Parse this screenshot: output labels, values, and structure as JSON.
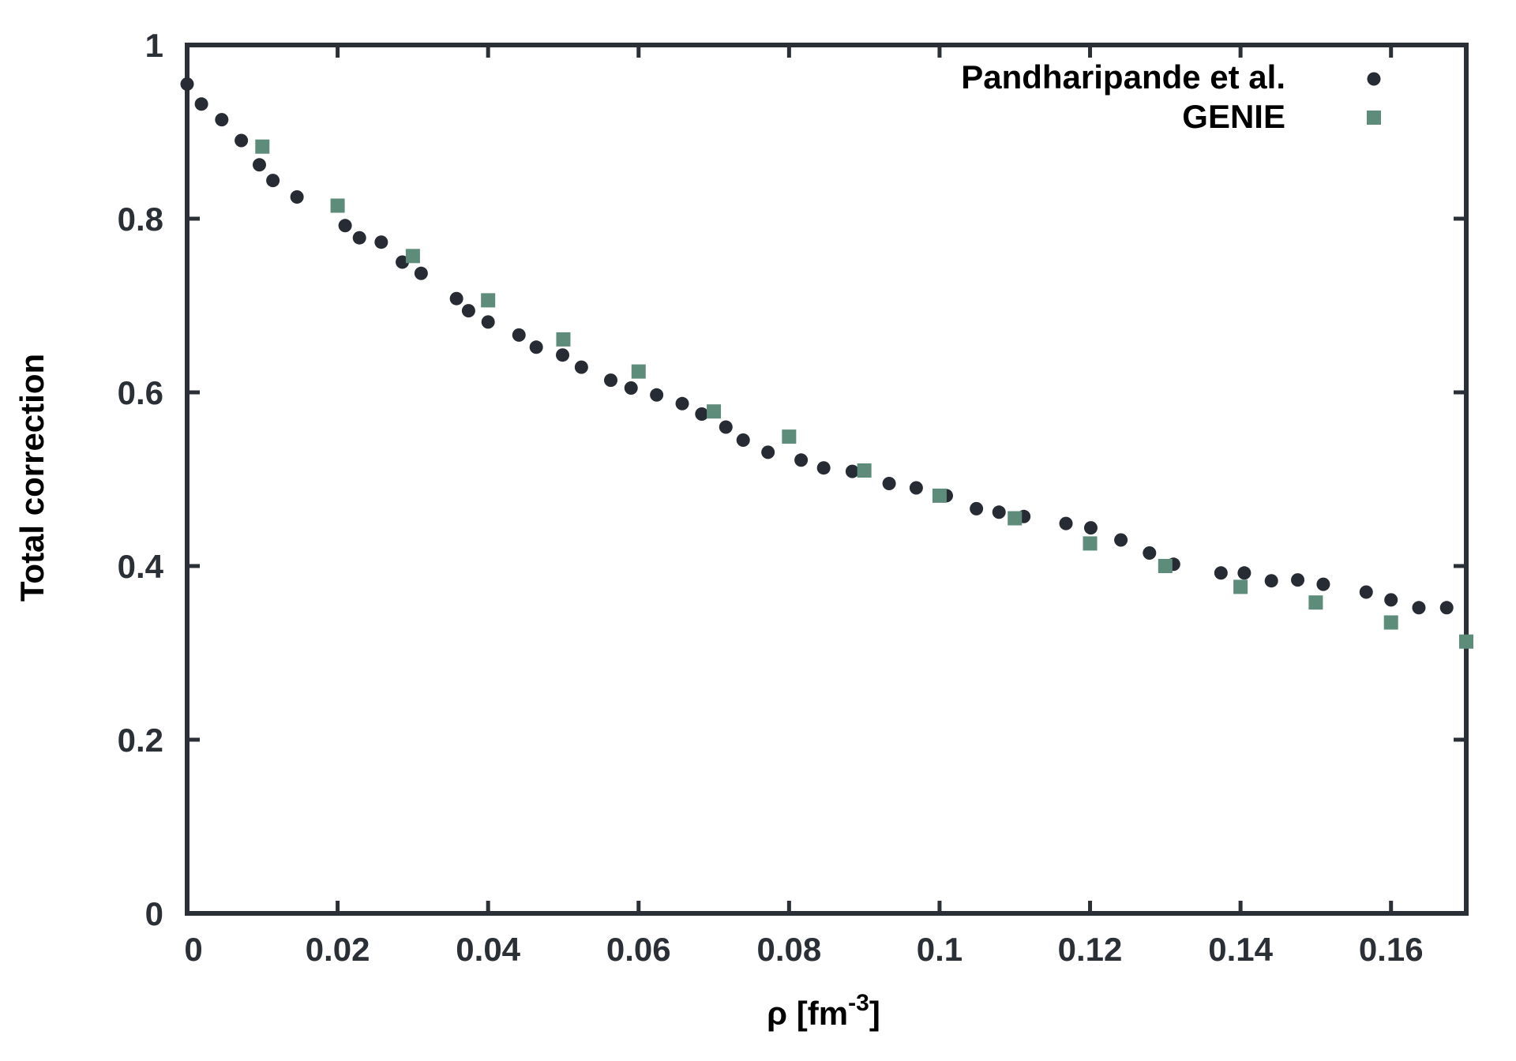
{
  "chart_data": {
    "type": "scatter",
    "title": "",
    "xlabel": "ρ [fm",
    "xlabel_exponent": "-3",
    "xlabel_suffix": "]",
    "ylabel": "Total correction",
    "xlim": [
      0,
      0.17
    ],
    "ylim": [
      0,
      1
    ],
    "x_ticks": [
      0,
      0.02,
      0.04,
      0.06,
      0.08,
      0.1,
      0.12,
      0.14,
      0.16
    ],
    "x_tick_labels": [
      "0",
      "0.02",
      "0.04",
      "0.06",
      "0.08",
      "0.1",
      "0.12",
      "0.14",
      "0.16"
    ],
    "y_ticks": [
      0,
      0.2,
      0.4,
      0.6,
      0.8,
      1
    ],
    "y_tick_labels": [
      "0",
      "0.2",
      "0.4",
      "0.6",
      "0.8",
      "1"
    ],
    "grid": false,
    "legend_position": "top-right",
    "colors": {
      "axis": "#2b2f36",
      "text": "#000000"
    },
    "series": [
      {
        "name": "Pandharipande et al.",
        "marker": "circle",
        "color": "#272b33",
        "x": [
          0.0,
          0.0019,
          0.0046,
          0.0072,
          0.0096,
          0.0114,
          0.0146,
          0.021,
          0.0229,
          0.0258,
          0.0286,
          0.0311,
          0.0358,
          0.0374,
          0.04,
          0.0441,
          0.0464,
          0.0499,
          0.0524,
          0.0563,
          0.059,
          0.0624,
          0.0658,
          0.0684,
          0.0716,
          0.0739,
          0.0772,
          0.0816,
          0.0846,
          0.0884,
          0.0933,
          0.0969,
          0.1009,
          0.1049,
          0.1079,
          0.1112,
          0.1168,
          0.1201,
          0.1241,
          0.1279,
          0.1311,
          0.1374,
          0.1405,
          0.1441,
          0.1476,
          0.151,
          0.1567,
          0.16,
          0.1637,
          0.1674
        ],
        "y": [
          0.955,
          0.932,
          0.914,
          0.89,
          0.862,
          0.844,
          0.825,
          0.792,
          0.778,
          0.773,
          0.75,
          0.737,
          0.708,
          0.694,
          0.681,
          0.666,
          0.652,
          0.643,
          0.629,
          0.614,
          0.605,
          0.597,
          0.587,
          0.575,
          0.56,
          0.545,
          0.531,
          0.522,
          0.513,
          0.509,
          0.495,
          0.49,
          0.481,
          0.466,
          0.462,
          0.457,
          0.449,
          0.444,
          0.43,
          0.415,
          0.402,
          0.392,
          0.392,
          0.383,
          0.384,
          0.379,
          0.37,
          0.361,
          0.352,
          0.352
        ]
      },
      {
        "name": "GENIE",
        "marker": "square",
        "color": "#5e8c7a",
        "x": [
          0.01,
          0.02,
          0.03,
          0.04,
          0.05,
          0.06,
          0.07,
          0.08,
          0.09,
          0.1,
          0.11,
          0.12,
          0.13,
          0.14,
          0.15,
          0.16,
          0.17
        ],
        "y": [
          0.883,
          0.815,
          0.757,
          0.706,
          0.661,
          0.624,
          0.578,
          0.549,
          0.51,
          0.481,
          0.455,
          0.426,
          0.4,
          0.376,
          0.358,
          0.335,
          0.313
        ]
      }
    ]
  }
}
